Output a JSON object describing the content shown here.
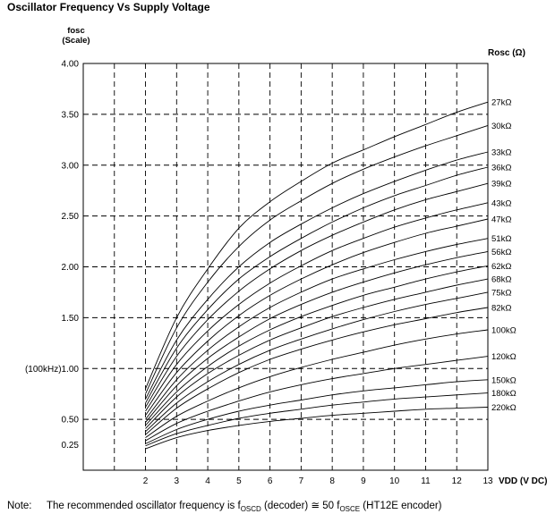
{
  "chart_data": {
    "type": "line",
    "title": "Oscillator Frequency Vs Supply Voltage",
    "ylabel": "fosc",
    "ylabel_sub": "(Scale)",
    "xlabel": "VDD (V DC)",
    "legend_title": "Rosc (Ω)",
    "xlim": [
      0,
      13
    ],
    "ylim": [
      0,
      4.0
    ],
    "x_ticks": [
      2,
      3,
      4,
      5,
      6,
      7,
      8,
      9,
      10,
      11,
      12,
      13
    ],
    "x_tick_labels": [
      "2",
      "3",
      "4",
      "5",
      "6",
      "7",
      "8",
      "9",
      "10",
      "11",
      "12",
      "13"
    ],
    "y_ticks": [
      0.25,
      0.5,
      1.0,
      1.5,
      2.0,
      2.5,
      3.0,
      3.5,
      4.0
    ],
    "y_tick_labels": [
      "0.25",
      "0.50",
      "(100kHz)1.00",
      "1.50",
      "2.00",
      "2.50",
      "3.00",
      "3.50",
      "4.00"
    ],
    "grid": "dashed",
    "x": [
      2,
      3,
      4,
      5,
      6,
      7,
      8,
      9,
      10,
      11,
      12,
      13
    ],
    "series": [
      {
        "name": "27kΩ",
        "values": [
          0.8,
          1.5,
          1.98,
          2.38,
          2.64,
          2.84,
          3.02,
          3.15,
          3.28,
          3.4,
          3.52,
          3.62
        ]
      },
      {
        "name": "30kΩ",
        "values": [
          0.75,
          1.4,
          1.85,
          2.2,
          2.46,
          2.65,
          2.82,
          2.96,
          3.08,
          3.19,
          3.29,
          3.39
        ]
      },
      {
        "name": "33kΩ",
        "values": [
          0.7,
          1.28,
          1.68,
          2.0,
          2.24,
          2.42,
          2.58,
          2.72,
          2.84,
          2.95,
          3.05,
          3.13
        ]
      },
      {
        "name": "36kΩ",
        "values": [
          0.66,
          1.2,
          1.58,
          1.88,
          2.1,
          2.28,
          2.44,
          2.58,
          2.7,
          2.8,
          2.9,
          2.98
        ]
      },
      {
        "name": "39kΩ",
        "values": [
          0.62,
          1.12,
          1.48,
          1.76,
          1.98,
          2.16,
          2.31,
          2.44,
          2.56,
          2.66,
          2.74,
          2.82
        ]
      },
      {
        "name": "43kΩ",
        "values": [
          0.58,
          1.04,
          1.37,
          1.63,
          1.84,
          2.01,
          2.16,
          2.28,
          2.39,
          2.48,
          2.56,
          2.63
        ]
      },
      {
        "name": "47kΩ",
        "values": [
          0.54,
          0.96,
          1.27,
          1.52,
          1.72,
          1.88,
          2.02,
          2.14,
          2.24,
          2.33,
          2.4,
          2.47
        ]
      },
      {
        "name": "51kΩ",
        "values": [
          0.5,
          0.89,
          1.18,
          1.41,
          1.6,
          1.75,
          1.88,
          1.98,
          2.07,
          2.15,
          2.22,
          2.28
        ]
      },
      {
        "name": "56kΩ",
        "values": [
          0.47,
          0.83,
          1.1,
          1.31,
          1.49,
          1.63,
          1.75,
          1.85,
          1.94,
          2.02,
          2.09,
          2.15
        ]
      },
      {
        "name": "62kΩ",
        "values": [
          0.44,
          0.77,
          1.02,
          1.22,
          1.38,
          1.51,
          1.62,
          1.72,
          1.8,
          1.88,
          1.95,
          2.01
        ]
      },
      {
        "name": "68kΩ",
        "values": [
          0.41,
          0.72,
          0.95,
          1.13,
          1.28,
          1.4,
          1.51,
          1.6,
          1.68,
          1.75,
          1.82,
          1.88
        ]
      },
      {
        "name": "75kΩ",
        "values": [
          0.38,
          0.66,
          0.87,
          1.04,
          1.18,
          1.29,
          1.39,
          1.48,
          1.56,
          1.63,
          1.69,
          1.75
        ]
      },
      {
        "name": "82kΩ",
        "values": [
          0.35,
          0.61,
          0.8,
          0.96,
          1.09,
          1.19,
          1.28,
          1.36,
          1.43,
          1.49,
          1.55,
          1.6
        ]
      },
      {
        "name": "100kΩ",
        "values": [
          0.32,
          0.53,
          0.68,
          0.81,
          0.92,
          1.01,
          1.09,
          1.16,
          1.23,
          1.29,
          1.34,
          1.38
        ]
      },
      {
        "name": "120kΩ",
        "values": [
          0.29,
          0.46,
          0.58,
          0.68,
          0.77,
          0.84,
          0.9,
          0.95,
          1.0,
          1.04,
          1.08,
          1.12
        ]
      },
      {
        "name": "150kΩ",
        "values": [
          0.26,
          0.4,
          0.5,
          0.58,
          0.64,
          0.69,
          0.74,
          0.78,
          0.81,
          0.84,
          0.87,
          0.89
        ]
      },
      {
        "name": "180kΩ",
        "values": [
          0.24,
          0.36,
          0.44,
          0.51,
          0.56,
          0.6,
          0.64,
          0.67,
          0.7,
          0.72,
          0.74,
          0.76
        ]
      },
      {
        "name": "220kΩ",
        "values": [
          0.21,
          0.32,
          0.39,
          0.44,
          0.48,
          0.51,
          0.54,
          0.56,
          0.58,
          0.6,
          0.61,
          0.62
        ]
      }
    ]
  },
  "note": {
    "label": "Note:",
    "text_before": "The recommended oscillator frequency is f",
    "sub1": "OSCD",
    "text_middle": " (decoder) ≅ 50 f",
    "sub2": "OSCE",
    "text_after": " (HT12E encoder)"
  }
}
